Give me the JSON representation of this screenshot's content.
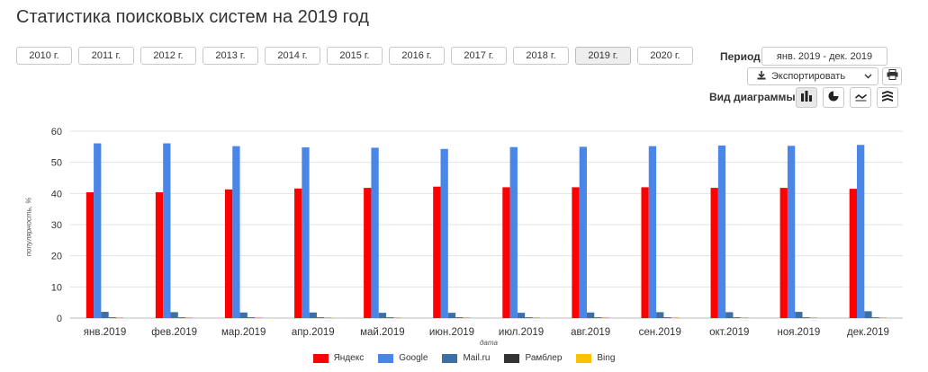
{
  "page": {
    "title": "Статистика поисковых систем на 2019 год"
  },
  "years": [
    {
      "label": "2010 г.",
      "active": false
    },
    {
      "label": "2011 г.",
      "active": false
    },
    {
      "label": "2012 г.",
      "active": false
    },
    {
      "label": "2013 г.",
      "active": false
    },
    {
      "label": "2014 г.",
      "active": false
    },
    {
      "label": "2015 г.",
      "active": false
    },
    {
      "label": "2016 г.",
      "active": false
    },
    {
      "label": "2017 г.",
      "active": false
    },
    {
      "label": "2018 г.",
      "active": false
    },
    {
      "label": "2019 г.",
      "active": true
    },
    {
      "label": "2020 г.",
      "active": false
    }
  ],
  "controls": {
    "period_label": "Период",
    "period_value": "янв. 2019 - дек. 2019",
    "export_label": "Экспортировать",
    "view_label": "Вид диаграммы:",
    "view_options": [
      "bar-chart-icon",
      "pie-chart-icon",
      "line-chart-icon",
      "stacked-chart-icon"
    ]
  },
  "chart_data": {
    "type": "bar",
    "xlabel": "дата",
    "ylabel": "популярность, %",
    "ylim": [
      0,
      60
    ],
    "yticks": [
      0,
      10,
      20,
      30,
      40,
      50,
      60
    ],
    "grid": true,
    "legend_position": "bottom",
    "categories": [
      "янв.2019",
      "фев.2019",
      "мар.2019",
      "апр.2019",
      "май.2019",
      "июн.2019",
      "июл.2019",
      "авг.2019",
      "сен.2019",
      "окт.2019",
      "ноя.2019",
      "дек.2019"
    ],
    "series": [
      {
        "name": "Яндекс",
        "color": "#ff0000",
        "values": [
          40.4,
          40.4,
          41.3,
          41.6,
          41.8,
          42.2,
          42.0,
          42.0,
          42.0,
          41.8,
          41.8,
          41.5
        ]
      },
      {
        "name": "Google",
        "color": "#4a86e8",
        "values": [
          56.1,
          56.1,
          55.2,
          54.8,
          54.7,
          54.3,
          54.9,
          55.0,
          55.2,
          55.4,
          55.3,
          55.6
        ]
      },
      {
        "name": "Mail.ru",
        "color": "#3d6ea4",
        "values": [
          2.0,
          1.9,
          1.8,
          1.8,
          1.7,
          1.7,
          1.7,
          1.8,
          1.9,
          1.9,
          2.0,
          2.2
        ]
      },
      {
        "name": "Рамблер",
        "color": "#333333",
        "values": [
          0.2,
          0.2,
          0.2,
          0.2,
          0.2,
          0.2,
          0.2,
          0.2,
          0.2,
          0.2,
          0.2,
          0.2
        ]
      },
      {
        "name": "Bing",
        "color": "#ffc000",
        "values": [
          0.3,
          0.3,
          0.3,
          0.3,
          0.3,
          0.3,
          0.3,
          0.3,
          0.3,
          0.3,
          0.3,
          0.3
        ]
      }
    ]
  }
}
